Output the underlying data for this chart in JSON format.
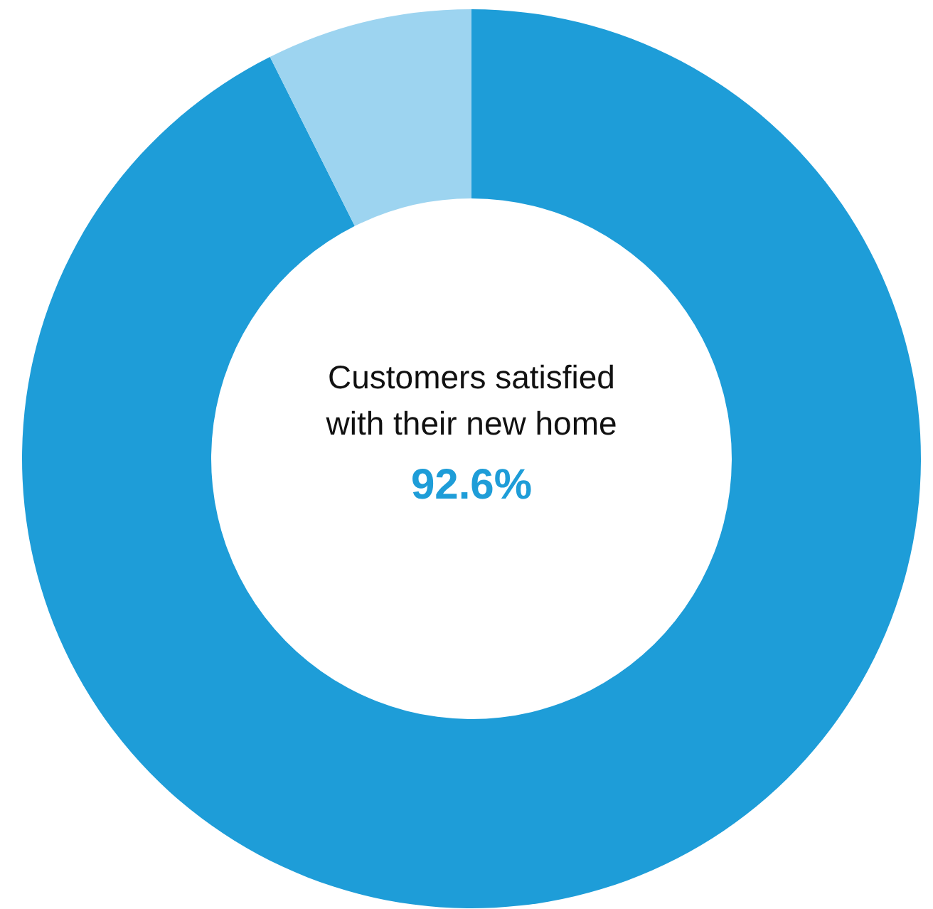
{
  "chart_data": {
    "type": "donut",
    "title": "Customers satisfied\nwith their new home",
    "categories": [
      null,
      null
    ],
    "values": [
      92.6,
      7.4
    ],
    "colors": [
      "#1e9dd8",
      "#9dd4f0"
    ],
    "value_labels": [
      "92.6%",
      null
    ]
  }
}
